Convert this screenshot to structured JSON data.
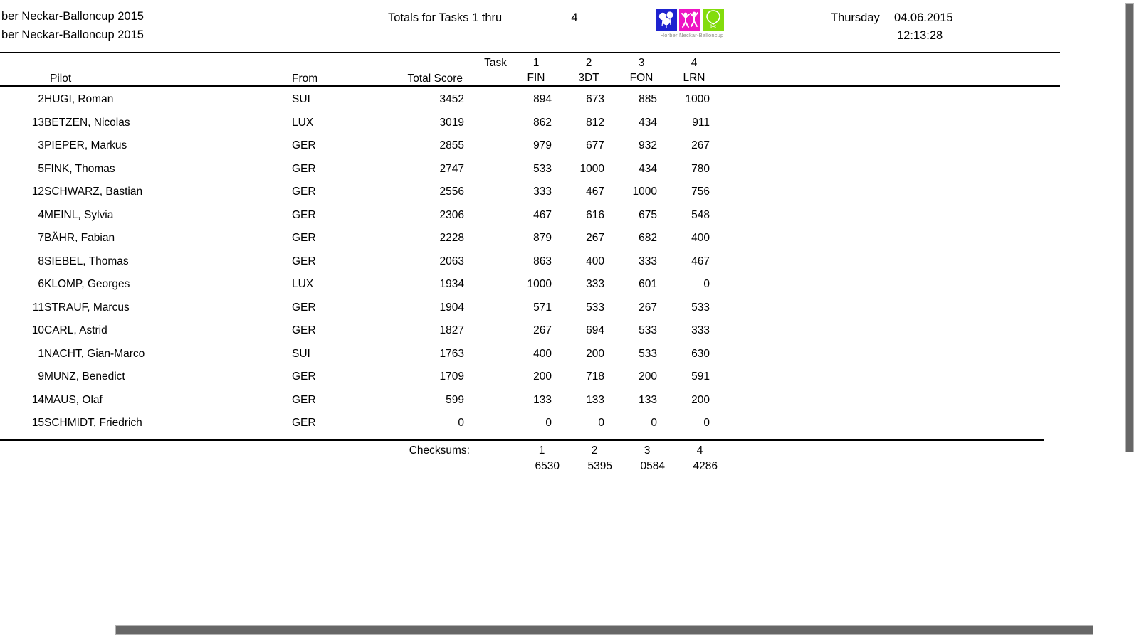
{
  "page": {
    "title_line1": "ber Neckar-Balloncup 2015",
    "title_line2": "ber Neckar-Balloncup 2015",
    "center_label": "Totals for Tasks 1 thru",
    "tasks_thru": "4",
    "weekday": "Thursday",
    "date": "04.06.2015",
    "time": "12:13:28"
  },
  "logo": {
    "caption": "Horber Neckar-Balloncup",
    "colors": {
      "blue": "#1e23cf",
      "magenta": "#ee13c4",
      "green": "#83dc0c"
    }
  },
  "table": {
    "task_label": "Task",
    "pilot_header": "Pilot",
    "from_header": "From",
    "total_header": "Total Score",
    "tasks": [
      {
        "num": "1",
        "code": "FIN"
      },
      {
        "num": "2",
        "code": "3DT"
      },
      {
        "num": "3",
        "code": "FON"
      },
      {
        "num": "4",
        "code": "LRN"
      }
    ],
    "rows": [
      {
        "num": "2",
        "pilot": "HUGI, Roman",
        "from": "SUI",
        "total": "3452",
        "scores": [
          "894",
          "673",
          "885",
          "1000"
        ]
      },
      {
        "num": "13",
        "pilot": "BETZEN, Nicolas",
        "from": "LUX",
        "total": "3019",
        "scores": [
          "862",
          "812",
          "434",
          "911"
        ]
      },
      {
        "num": "3",
        "pilot": "PIEPER, Markus",
        "from": "GER",
        "total": "2855",
        "scores": [
          "979",
          "677",
          "932",
          "267"
        ]
      },
      {
        "num": "5",
        "pilot": "FINK, Thomas",
        "from": "GER",
        "total": "2747",
        "scores": [
          "533",
          "1000",
          "434",
          "780"
        ]
      },
      {
        "num": "12",
        "pilot": "SCHWARZ, Bastian",
        "from": "GER",
        "total": "2556",
        "scores": [
          "333",
          "467",
          "1000",
          "756"
        ]
      },
      {
        "num": "4",
        "pilot": "MEINL, Sylvia",
        "from": "GER",
        "total": "2306",
        "scores": [
          "467",
          "616",
          "675",
          "548"
        ]
      },
      {
        "num": "7",
        "pilot": "BÄHR, Fabian",
        "from": "GER",
        "total": "2228",
        "scores": [
          "879",
          "267",
          "682",
          "400"
        ]
      },
      {
        "num": "8",
        "pilot": "SIEBEL, Thomas",
        "from": "GER",
        "total": "2063",
        "scores": [
          "863",
          "400",
          "333",
          "467"
        ]
      },
      {
        "num": "6",
        "pilot": "KLOMP, Georges",
        "from": "LUX",
        "total": "1934",
        "scores": [
          "1000",
          "333",
          "601",
          "0"
        ]
      },
      {
        "num": "11",
        "pilot": "STRAUF, Marcus",
        "from": "GER",
        "total": "1904",
        "scores": [
          "571",
          "533",
          "267",
          "533"
        ]
      },
      {
        "num": "10",
        "pilot": "CARL, Astrid",
        "from": "GER",
        "total": "1827",
        "scores": [
          "267",
          "694",
          "533",
          "333"
        ]
      },
      {
        "num": "1",
        "pilot": "NACHT, Gian-Marco",
        "from": "SUI",
        "total": "1763",
        "scores": [
          "400",
          "200",
          "533",
          "630"
        ]
      },
      {
        "num": "9",
        "pilot": "MUNZ, Benedict",
        "from": "GER",
        "total": "1709",
        "scores": [
          "200",
          "718",
          "200",
          "591"
        ]
      },
      {
        "num": "14",
        "pilot": "MAUS, Olaf",
        "from": "GER",
        "total": "599",
        "scores": [
          "133",
          "133",
          "133",
          "200"
        ]
      },
      {
        "num": "15",
        "pilot": "SCHMIDT, Friedrich",
        "from": "GER",
        "total": "0",
        "scores": [
          "0",
          "0",
          "0",
          "0"
        ]
      }
    ]
  },
  "checksums": {
    "label": "Checksums:",
    "items": [
      {
        "num": "1",
        "value": "6530"
      },
      {
        "num": "2",
        "value": "5395"
      },
      {
        "num": "3",
        "value": "0584"
      },
      {
        "num": "4",
        "value": "4286"
      }
    ]
  },
  "colors": {
    "line": "#000000",
    "scrollbar_thumb": "#676767"
  }
}
